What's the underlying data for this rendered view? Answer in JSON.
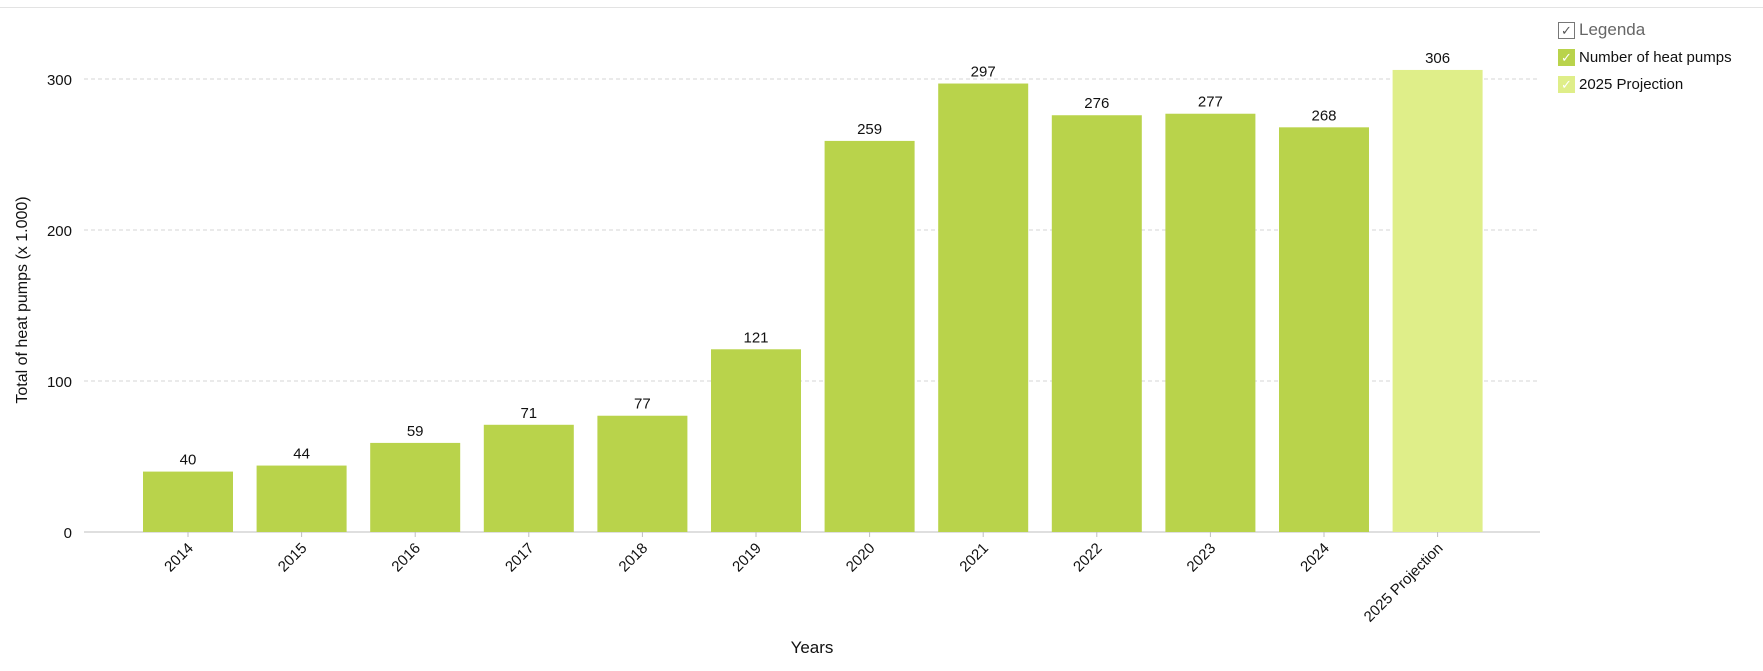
{
  "legend": {
    "title": "Legenda",
    "check_glyph": "✓",
    "items": [
      {
        "label": "Number of heat pumps",
        "color": "#b9d34b"
      },
      {
        "label": "2025 Projection",
        "color": "#dfee89"
      }
    ]
  },
  "chart_data": {
    "type": "bar",
    "xlabel": "Years",
    "ylabel": "Total of heat pumps (x 1.000)",
    "ylim": [
      0,
      330
    ],
    "yticks": [
      0,
      100,
      200,
      300
    ],
    "grid": true,
    "legend_position": "top-right",
    "categories": [
      "2014",
      "2015",
      "2016",
      "2017",
      "2018",
      "2019",
      "2020",
      "2021",
      "2022",
      "2023",
      "2024",
      "2025 Projection"
    ],
    "series": [
      {
        "name": "Number of heat pumps",
        "color": "#b9d34b",
        "values": [
          40,
          44,
          59,
          71,
          77,
          121,
          259,
          297,
          276,
          277,
          268,
          null
        ]
      },
      {
        "name": "2025 Projection",
        "color": "#dfee89",
        "values": [
          null,
          null,
          null,
          null,
          null,
          null,
          null,
          null,
          null,
          null,
          null,
          306
        ]
      }
    ]
  }
}
